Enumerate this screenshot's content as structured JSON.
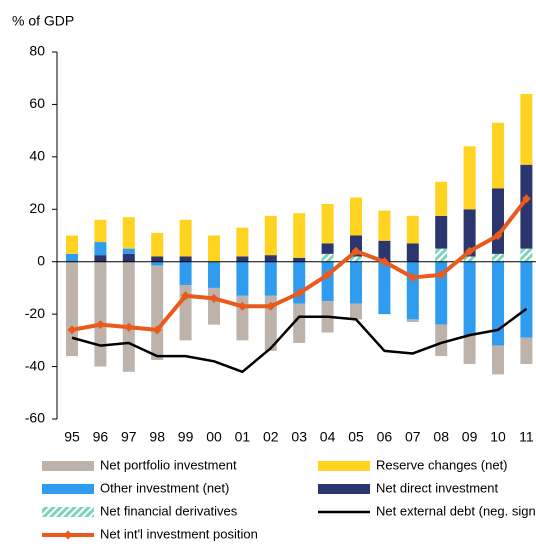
{
  "chart_data": {
    "type": "stacked_bar_line",
    "y_label": "% of GDP",
    "categories": [
      "95",
      "96",
      "97",
      "98",
      "99",
      "00",
      "01",
      "02",
      "03",
      "04",
      "05",
      "06",
      "07",
      "08",
      "09",
      "10",
      "11"
    ],
    "ylim": [
      -60,
      80
    ],
    "yticks": [
      -60,
      -40,
      -20,
      0,
      20,
      40,
      60,
      80
    ],
    "series": [
      {
        "name": "Net portfolio investment",
        "color": "#bdb3ab",
        "kind": "bar",
        "values": [
          -36,
          -40,
          -42,
          -36,
          -21,
          -14,
          -17,
          -21,
          -15,
          -12,
          -6,
          0,
          -1,
          -12,
          -11,
          -11,
          -10
        ]
      },
      {
        "name": "Reserve changes (net)",
        "color": "#ffd320",
        "kind": "bar",
        "values": [
          7,
          8.5,
          12,
          9,
          14,
          10,
          11,
          15,
          17,
          15,
          14.5,
          11.5,
          10.5,
          13,
          24,
          25,
          27
        ]
      },
      {
        "name": "Other investment (net)",
        "color": "#2f9cf0",
        "kind": "bar",
        "values": [
          3,
          5,
          2,
          -1.5,
          -9,
          -10,
          -13,
          -13,
          -16,
          -15,
          -16,
          -20,
          -22,
          -24,
          -28,
          -32,
          -29
        ]
      },
      {
        "name": "Net direct investment",
        "color": "#2b356e",
        "kind": "bar",
        "values": [
          0,
          2.5,
          3,
          2,
          2,
          0,
          2,
          2.5,
          1.5,
          4,
          8,
          8,
          7,
          12.5,
          18,
          25,
          32
        ]
      },
      {
        "name": "Net financial derivatives",
        "color": "#7ed3bb",
        "kind": "bar",
        "hatched": true,
        "values": [
          0,
          0,
          0,
          0,
          0,
          0,
          0,
          0,
          0,
          3,
          2,
          0,
          0,
          5,
          2,
          3,
          5
        ]
      },
      {
        "name": "Net external debt (neg. sign)",
        "color": "#000000",
        "kind": "line",
        "values": [
          -29,
          -32,
          -31,
          -36,
          -36,
          -38,
          -42,
          -33,
          -21,
          -21,
          -22,
          -34,
          -35,
          -31,
          -28,
          -26,
          -18
        ]
      },
      {
        "name": "Net int'l investment position",
        "color": "#ea5a1c",
        "kind": "line",
        "marker": "diamond",
        "values": [
          -26,
          -24,
          -25,
          -26,
          -13,
          -14,
          -17,
          -17,
          -12,
          -5,
          4,
          0,
          -6,
          -5,
          4,
          10,
          24
        ]
      }
    ]
  }
}
